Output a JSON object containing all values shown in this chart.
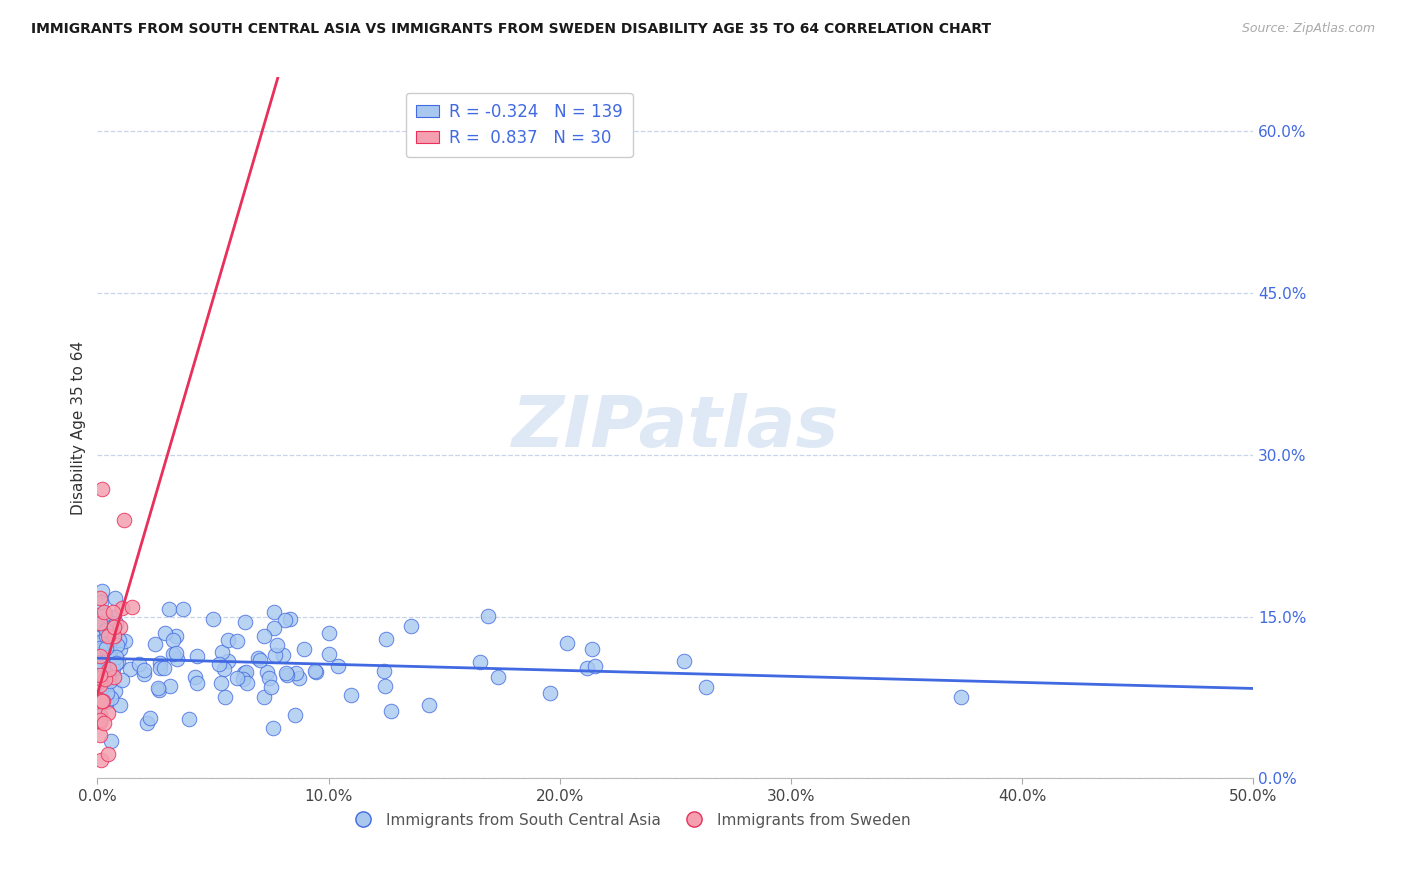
{
  "title": "IMMIGRANTS FROM SOUTH CENTRAL ASIA VS IMMIGRANTS FROM SWEDEN DISABILITY AGE 35 TO 64 CORRELATION CHART",
  "source": "Source: ZipAtlas.com",
  "ylabel": "Disability Age 35 to 64",
  "xlim": [
    0.0,
    0.5
  ],
  "ylim": [
    0.0,
    0.65
  ],
  "x_ticks": [
    0.0,
    0.1,
    0.2,
    0.3,
    0.4,
    0.5
  ],
  "y_ticks_right": [
    0.0,
    0.15,
    0.3,
    0.45,
    0.6
  ],
  "watermark": "ZIPatlas",
  "legend_r_blue": "-0.324",
  "legend_n_blue": "139",
  "legend_r_pink": "0.837",
  "legend_n_pink": "30",
  "blue_color": "#a8c8f0",
  "pink_color": "#f4a0b0",
  "blue_line_color": "#4169e1",
  "pink_line_color": "#e8305a",
  "legend_text_color": "#4169e1",
  "grid_color": "#c8d4e8",
  "blue_seed": 77,
  "pink_seed": 55
}
